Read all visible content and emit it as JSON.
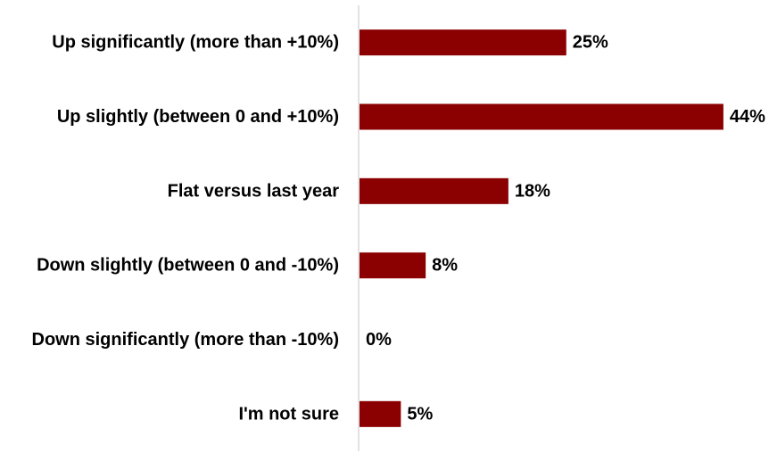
{
  "chart_data": {
    "type": "bar",
    "orientation": "horizontal",
    "title": "",
    "xlabel": "",
    "ylabel": "",
    "categories": [
      "Up significantly (more than +10%)",
      "Up slightly (between 0 and +10%)",
      "Flat versus last year",
      "Down slightly (between 0 and -10%)",
      "Down significantly (more than -10%)",
      "I'm not sure"
    ],
    "values": [
      25,
      44,
      18,
      8,
      0,
      5
    ],
    "value_labels": [
      "25%",
      "44%",
      "18%",
      "8%",
      "0%",
      "5%"
    ],
    "xlim": [
      0,
      45
    ],
    "grid": false,
    "legend": "none",
    "bar_color": "#8b0000",
    "axis_color": "#d9d9d9"
  }
}
